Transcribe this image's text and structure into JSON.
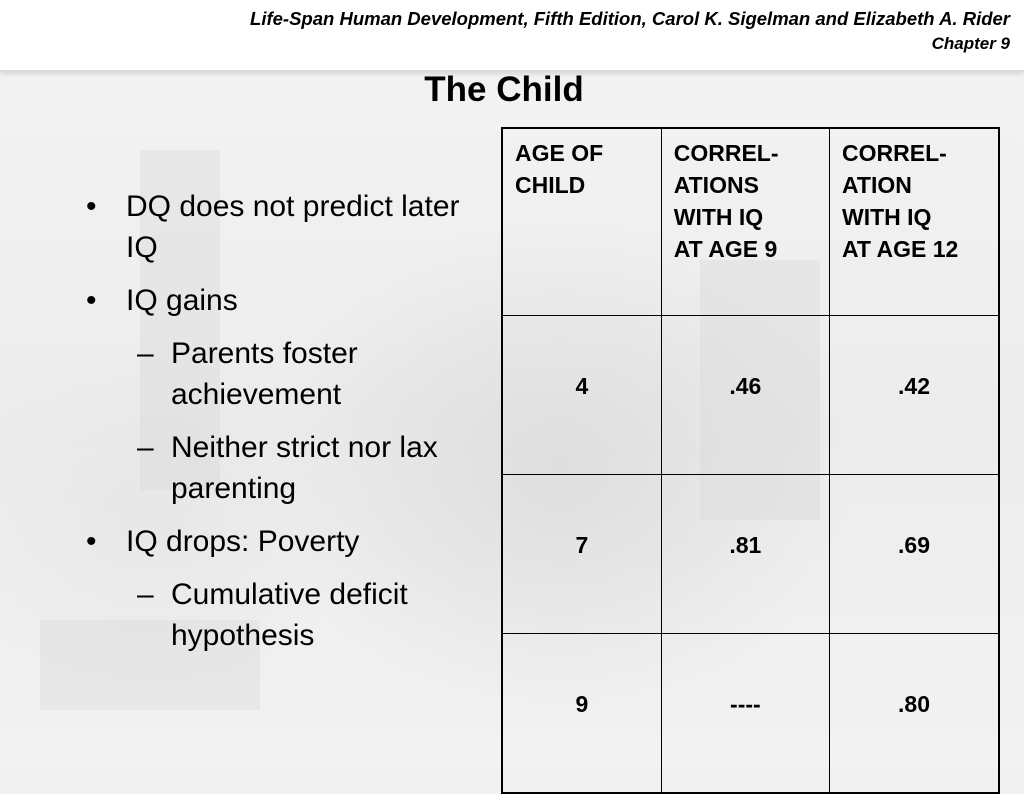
{
  "header": {
    "book_title": "Life-Span Human Development, Fifth Edition, Carol K. Sigelman and Elizabeth A. Rider",
    "chapter": "Chapter 9"
  },
  "slide": {
    "title": "The Child",
    "bullets": [
      {
        "level": 1,
        "text": "DQ does not predict later IQ"
      },
      {
        "level": 1,
        "text": "IQ gains"
      },
      {
        "level": 2,
        "text": "Parents foster achievement"
      },
      {
        "level": 2,
        "text": "Neither strict nor lax parenting"
      },
      {
        "level": 1,
        "text": "IQ drops: Poverty"
      },
      {
        "level": 2,
        "text": "Cumulative deficit hypothesis"
      }
    ],
    "bullet_glyph": "•",
    "sub_bullet_glyph": "–"
  },
  "table": {
    "headers": [
      "AGE OF CHILD",
      "CORREL-ATIONS WITH IQ AT AGE 9",
      "CORREL-ATION WITH IQ AT AGE 12"
    ],
    "header_lines": [
      [
        "AGE OF",
        "CHILD"
      ],
      [
        "CORREL-",
        "ATIONS",
        "WITH IQ",
        "AT AGE 9"
      ],
      [
        "CORREL-",
        "ATION",
        "WITH IQ",
        "AT AGE 12"
      ]
    ],
    "rows": [
      {
        "age": "4",
        "corr_age9": ".46",
        "corr_age12": ".42"
      },
      {
        "age": "7",
        "corr_age9": ".81",
        "corr_age12": ".69"
      },
      {
        "age": "9",
        "corr_age9": "----",
        "corr_age12": ".80"
      }
    ]
  }
}
